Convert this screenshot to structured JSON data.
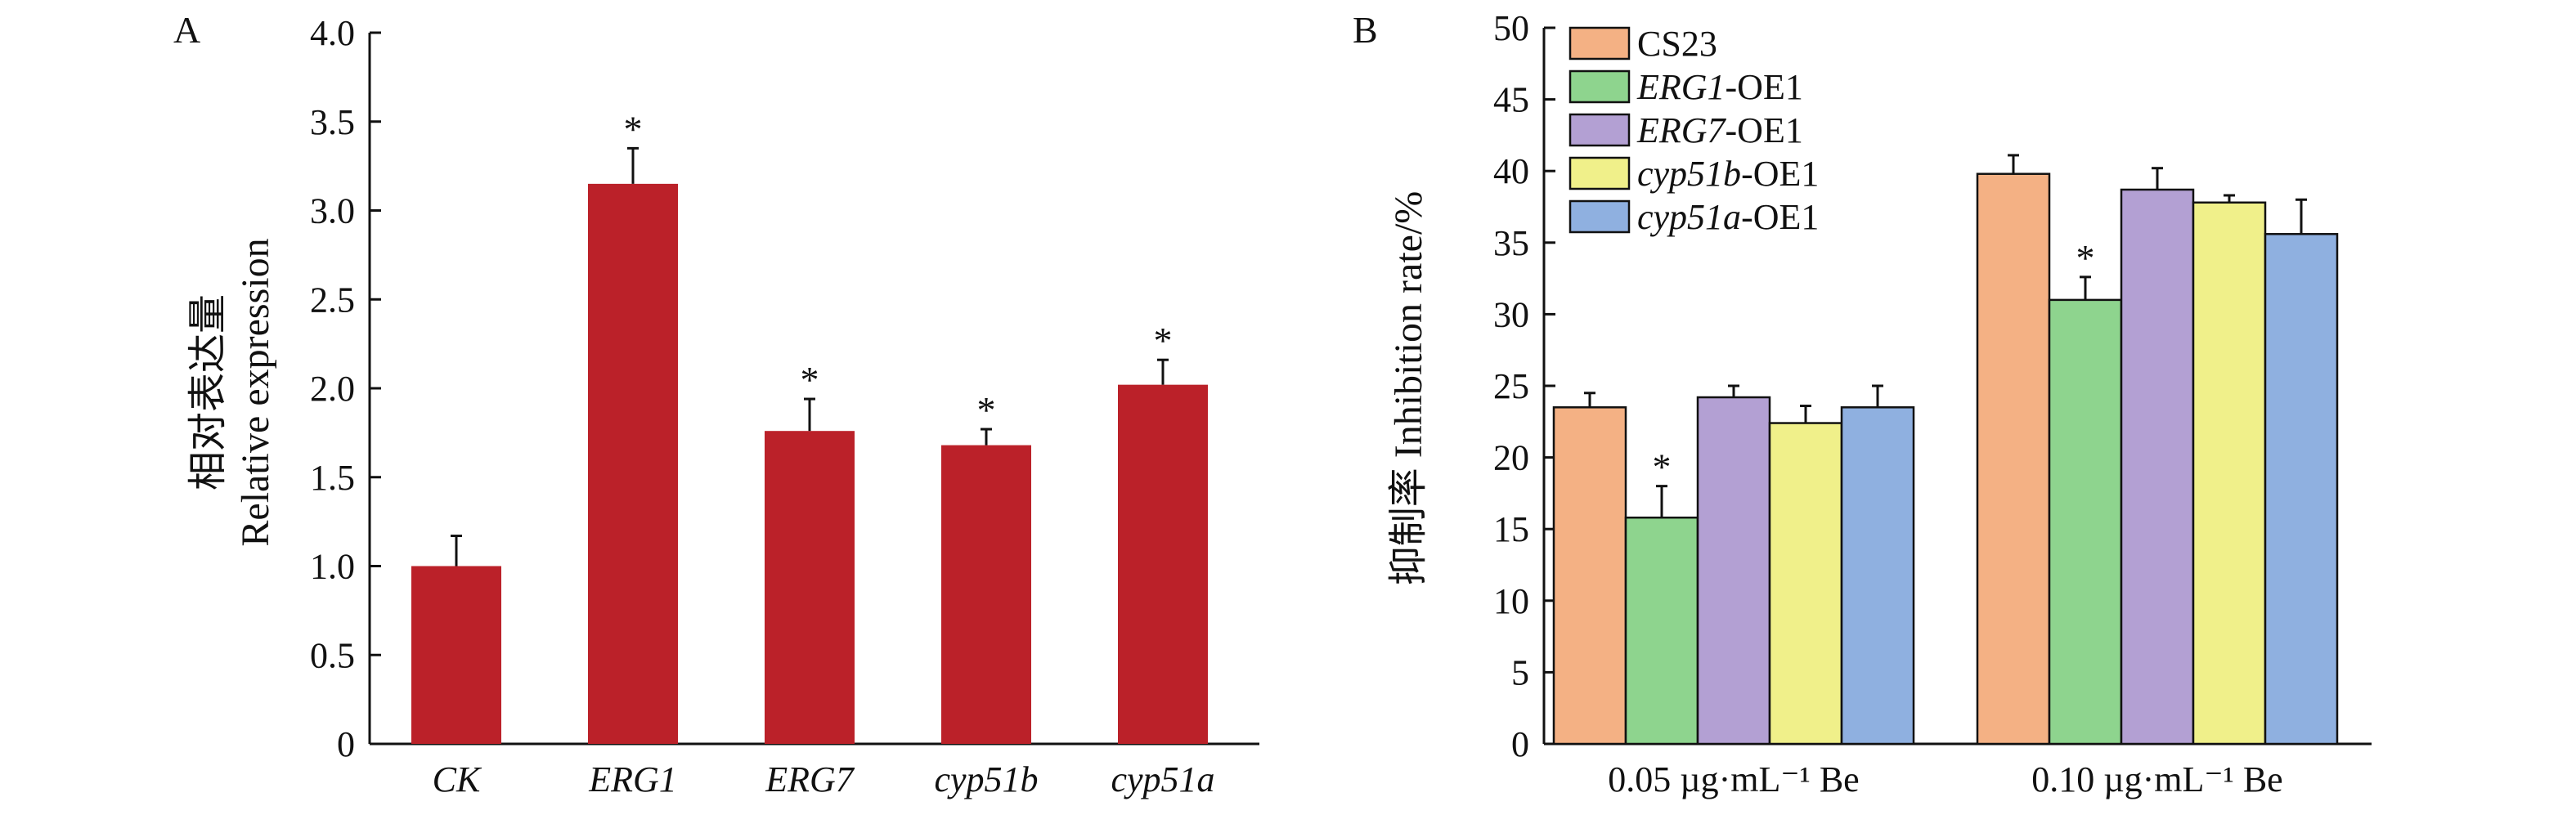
{
  "panels": [
    {
      "letter": "A",
      "ylabel_cn": "相对表达量",
      "ylabel_en": "Relative expression",
      "chart_data": {
        "type": "bar",
        "categories": [
          "CK",
          "ERG1",
          "ERG7",
          "cyp51b",
          "cyp51a"
        ],
        "values": [
          1.0,
          3.15,
          1.76,
          1.68,
          2.02
        ],
        "errors": [
          0.17,
          0.2,
          0.18,
          0.09,
          0.14
        ],
        "significant": [
          false,
          true,
          true,
          true,
          true
        ],
        "ylim": [
          0,
          4.0
        ],
        "yticks": [
          "0",
          "0.5",
          "1.0",
          "1.5",
          "2.0",
          "2.5",
          "3.0",
          "3.5",
          "4.0"
        ],
        "bar_color": "#bb2129",
        "sig_mark": "*"
      }
    },
    {
      "letter": "B",
      "ylabel_cn": "抑制率",
      "ylabel_en": "Inhibition rate/%",
      "chart_data": {
        "type": "bar",
        "categories": [
          "0.05 µg·mL⁻¹ Be",
          "0.10 µg·mL⁻¹ Be"
        ],
        "series": [
          {
            "name": "CS23",
            "name_italic": "",
            "name_suffix": "CS23",
            "color": "#f4b184",
            "values": [
              23.5,
              39.8
            ],
            "errors": [
              1.0,
              1.3
            ],
            "significant": [
              false,
              false
            ]
          },
          {
            "name": "ERG1-OE1",
            "name_italic": "ERG1",
            "name_suffix": "-OE1",
            "color": "#8ed48e",
            "values": [
              15.8,
              31.0
            ],
            "errors": [
              2.2,
              1.6
            ],
            "significant": [
              true,
              true
            ]
          },
          {
            "name": "ERG7-OE1",
            "name_italic": "ERG7",
            "name_suffix": "-OE1",
            "color": "#b3a0d3",
            "values": [
              24.2,
              38.7
            ],
            "errors": [
              0.8,
              1.5
            ],
            "significant": [
              false,
              false
            ]
          },
          {
            "name": "cyp51b-OE1",
            "name_italic": "cyp51b",
            "name_suffix": "-OE1",
            "color": "#f0f08a",
            "values": [
              22.4,
              37.8
            ],
            "errors": [
              1.2,
              0.5
            ],
            "significant": [
              false,
              false
            ]
          },
          {
            "name": "cyp51a-OE1",
            "name_italic": "cyp51a",
            "name_suffix": "-OE1",
            "color": "#8fb0e0",
            "values": [
              23.5,
              35.6
            ],
            "errors": [
              1.5,
              2.4
            ],
            "significant": [
              false,
              false
            ]
          }
        ],
        "ylim": [
          0,
          50
        ],
        "yticks": [
          "0",
          "5",
          "10",
          "15",
          "20",
          "25",
          "30",
          "35",
          "40",
          "45",
          "50"
        ],
        "legend": "top-left",
        "sig_mark": "*"
      }
    }
  ]
}
